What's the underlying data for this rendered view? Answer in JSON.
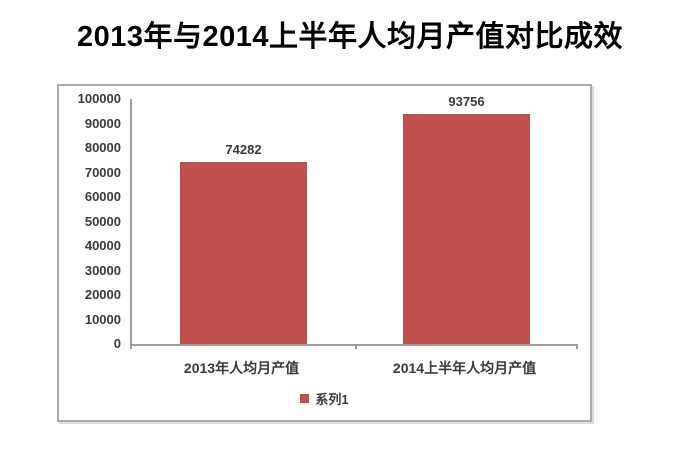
{
  "page_title": "2013年与2014上半年人均月产值对比成效",
  "chart_data": {
    "type": "bar",
    "title": "2013年与2014上半年人均月产值对比成效",
    "categories": [
      "2013年人均月产值",
      "2014上半年人均月产值"
    ],
    "series": [
      {
        "name": "系列1",
        "values": [
          74282,
          93756
        ],
        "color": "#C0504D"
      }
    ],
    "data_labels": [
      "74282",
      "93756"
    ],
    "xlabel": "",
    "ylabel": "",
    "ylim": [
      0,
      100000
    ],
    "ytick_step": 10000,
    "ytick_labels": [
      "0",
      "10000",
      "20000",
      "30000",
      "40000",
      "50000",
      "60000",
      "70000",
      "80000",
      "90000",
      "100000"
    ],
    "grid": false,
    "legend_position": "bottom"
  },
  "colors": {
    "bar": "#C0504D",
    "axis_line": "#9D9D9D",
    "frame_border": "#ACACAC",
    "text": "#3A3A3A",
    "title": "#000000",
    "background": "#FFFFFF"
  }
}
